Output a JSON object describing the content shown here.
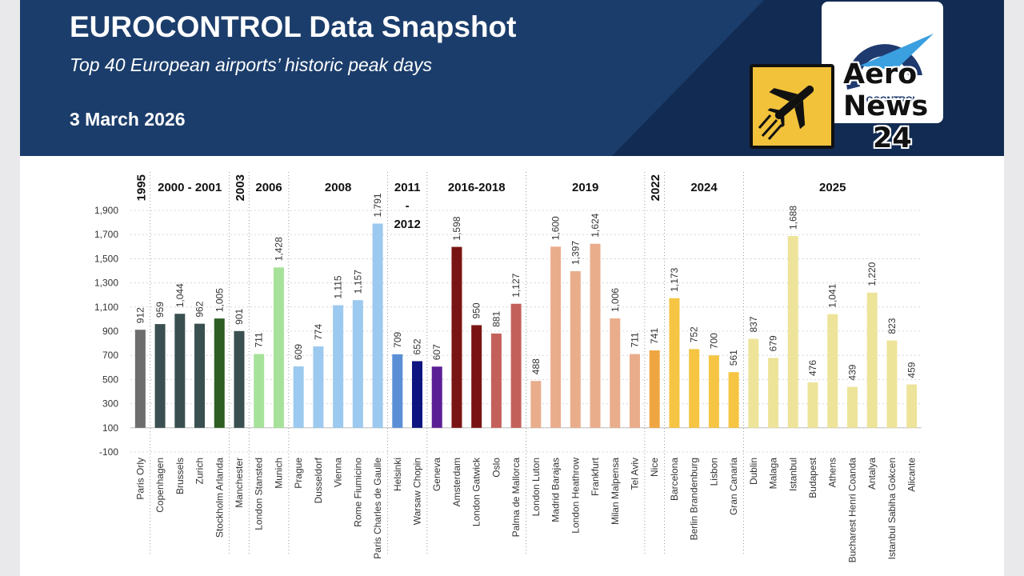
{
  "header": {
    "title": "EUROCONTROL Data Snapshot",
    "subtitle": "Top 40 European airports’ historic peak days",
    "date": "3 March 2026",
    "colors": {
      "navy": "#1b3d6b",
      "navy_dark": "#122b52"
    }
  },
  "logos": {
    "eurocontrol_text": "EUROCONTROL",
    "aero_news": [
      "Aero",
      "News",
      "24"
    ],
    "icons": [
      "eurocontrol-logo-icon",
      "airplane-icon"
    ]
  },
  "chart_data": {
    "type": "bar",
    "title": "",
    "xlabel": "",
    "ylabel": "",
    "ylim": [
      -100,
      1900
    ],
    "y_ticks": [
      -100,
      100,
      300,
      500,
      700,
      900,
      1100,
      1300,
      1500,
      1700,
      1900
    ],
    "y_tick_labels": [
      "-100",
      "100",
      "300",
      "500",
      "700",
      "900",
      "1,100",
      "1,300",
      "1,500",
      "1,700",
      "1,900"
    ],
    "grid": true,
    "groups": [
      {
        "label": [
          "1995"
        ],
        "vertical": true,
        "bars": [
          {
            "name": "Paris Orly",
            "value": 912,
            "label": "912",
            "color": "#6d6d6d"
          }
        ]
      },
      {
        "label": [
          "2000 - 2001"
        ],
        "bars": [
          {
            "name": "Copenhagen",
            "value": 959,
            "label": "959",
            "color": "#3a4f4f"
          },
          {
            "name": "Brussels",
            "value": 1044,
            "label": "1,044",
            "color": "#3a4f4f"
          },
          {
            "name": "Zurich",
            "value": 962,
            "label": "962",
            "color": "#3a4f4f"
          },
          {
            "name": "Stockholm Arlanda",
            "value": 1005,
            "label": "1,005",
            "color": "#2e5e22"
          }
        ]
      },
      {
        "label": [
          "2003"
        ],
        "vertical": true,
        "bars": [
          {
            "name": "Manchester",
            "value": 901,
            "label": "901",
            "color": "#3a4f4f"
          }
        ]
      },
      {
        "label": [
          "2006"
        ],
        "bars": [
          {
            "name": "London Stansted",
            "value": 711,
            "label": "711",
            "color": "#a7e29a"
          },
          {
            "name": "Munich",
            "value": 1428,
            "label": "1,428",
            "color": "#a7e29a"
          }
        ]
      },
      {
        "label": [
          "2008"
        ],
        "bars": [
          {
            "name": "Prague",
            "value": 609,
            "label": "609",
            "color": "#9cc9ef"
          },
          {
            "name": "Dusseldorf",
            "value": 774,
            "label": "774",
            "color": "#9cc9ef"
          },
          {
            "name": "Vienna",
            "value": 1115,
            "label": "1,115",
            "color": "#9cc9ef"
          },
          {
            "name": "Rome Fiumicino",
            "value": 1157,
            "label": "1,157",
            "color": "#9cc9ef"
          },
          {
            "name": "Paris Charles de Gaulle",
            "value": 1791,
            "label": "1,791",
            "color": "#9cc9ef"
          }
        ]
      },
      {
        "label": [
          "2011",
          "-",
          "2012"
        ],
        "bars": [
          {
            "name": "Helsinki",
            "value": 709,
            "label": "709",
            "color": "#5a8fd6"
          },
          {
            "name": "Warsaw Chopin",
            "value": 652,
            "label": "652",
            "color": "#0e1480"
          }
        ]
      },
      {
        "label": [
          "2016-2018"
        ],
        "bars": [
          {
            "name": "Geneva",
            "value": 607,
            "label": "607",
            "color": "#5b1f95"
          },
          {
            "name": "Amsterdam",
            "value": 1598,
            "label": "1,598",
            "color": "#7a1414"
          },
          {
            "name": "London Gatwick",
            "value": 950,
            "label": "950",
            "color": "#7a1414"
          },
          {
            "name": "Oslo",
            "value": 881,
            "label": "881",
            "color": "#c4605a"
          },
          {
            "name": "Palma de Mallorca",
            "value": 1127,
            "label": "1,127",
            "color": "#c4605a"
          }
        ]
      },
      {
        "label": [
          "2019"
        ],
        "bars": [
          {
            "name": "London Luton",
            "value": 488,
            "label": "488",
            "color": "#e9ad8c"
          },
          {
            "name": "Madrid Barajas",
            "value": 1600,
            "label": "1,600",
            "color": "#e9ad8c"
          },
          {
            "name": "London Heathrow",
            "value": 1397,
            "label": "1,397",
            "color": "#e9ad8c"
          },
          {
            "name": "Frankfurt",
            "value": 1624,
            "label": "1,624",
            "color": "#e9ad8c"
          },
          {
            "name": "Milan Malpensa",
            "value": 1006,
            "label": "1,006",
            "color": "#e9ad8c"
          },
          {
            "name": "Tel Aviv",
            "value": 711,
            "label": "711",
            "color": "#e9ad8c"
          }
        ]
      },
      {
        "label": [
          "2022"
        ],
        "vertical": true,
        "bars": [
          {
            "name": "Nice",
            "value": 741,
            "label": "741",
            "color": "#f0a640"
          }
        ]
      },
      {
        "label": [
          "2024"
        ],
        "bars": [
          {
            "name": "Barcelona",
            "value": 1173,
            "label": "1,173",
            "color": "#f5c543"
          },
          {
            "name": "Berlin Brandenburg",
            "value": 752,
            "label": "752",
            "color": "#f5c543"
          },
          {
            "name": "Lisbon",
            "value": 700,
            "label": "700",
            "color": "#f5c543"
          },
          {
            "name": "Gran Canaria",
            "value": 561,
            "label": "561",
            "color": "#f5c543"
          }
        ]
      },
      {
        "label": [
          "2025"
        ],
        "bars": [
          {
            "name": "Dublin",
            "value": 837,
            "label": "837",
            "color": "#ede49a"
          },
          {
            "name": "Malaga",
            "value": 679,
            "label": "679",
            "color": "#ede49a"
          },
          {
            "name": "Istanbul",
            "value": 1688,
            "label": "1,688",
            "color": "#ede49a"
          },
          {
            "name": "Budapest",
            "value": 476,
            "label": "476",
            "color": "#ede49a"
          },
          {
            "name": "Athens",
            "value": 1041,
            "label": "1,041",
            "color": "#ede49a"
          },
          {
            "name": "Bucharest Henri Coanda",
            "value": 439,
            "label": "439",
            "color": "#ede49a"
          },
          {
            "name": "Antalya",
            "value": 1220,
            "label": "1,220",
            "color": "#ede49a"
          },
          {
            "name": "Istanbul Sabiha Gokcen",
            "value": 823,
            "label": "823",
            "color": "#ede49a"
          },
          {
            "name": "Alicante",
            "value": 459,
            "label": "459",
            "color": "#ede49a"
          }
        ]
      }
    ]
  }
}
